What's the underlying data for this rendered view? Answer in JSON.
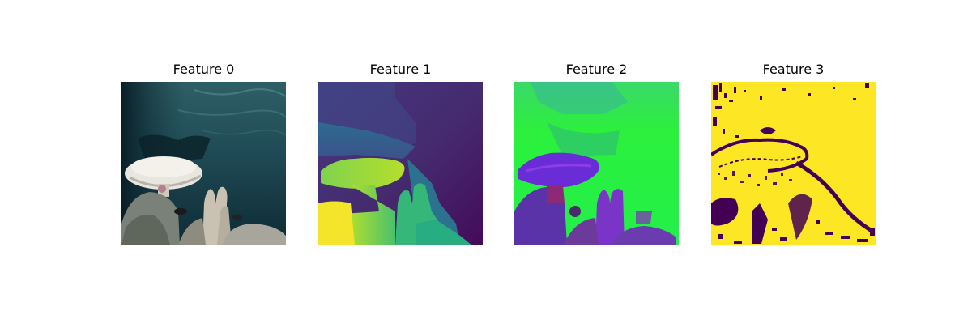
{
  "figure": {
    "panels": [
      {
        "title": "Feature 0",
        "image": "underwater-coral-photo-rgb"
      },
      {
        "title": "Feature 1",
        "image": "depth-map-viridis"
      },
      {
        "title": "Feature 2",
        "image": "surface-normals-map"
      },
      {
        "title": "Feature 3",
        "image": "binary-mask-viridis"
      }
    ]
  },
  "colors": {
    "viridis_dark": "#440154",
    "viridis_blue": "#3b528b",
    "viridis_teal": "#21918c",
    "viridis_green": "#5ec962",
    "viridis_yellow": "#fde725",
    "normals_green": "#2cf03c",
    "normals_purple": "#6a2cd6"
  }
}
